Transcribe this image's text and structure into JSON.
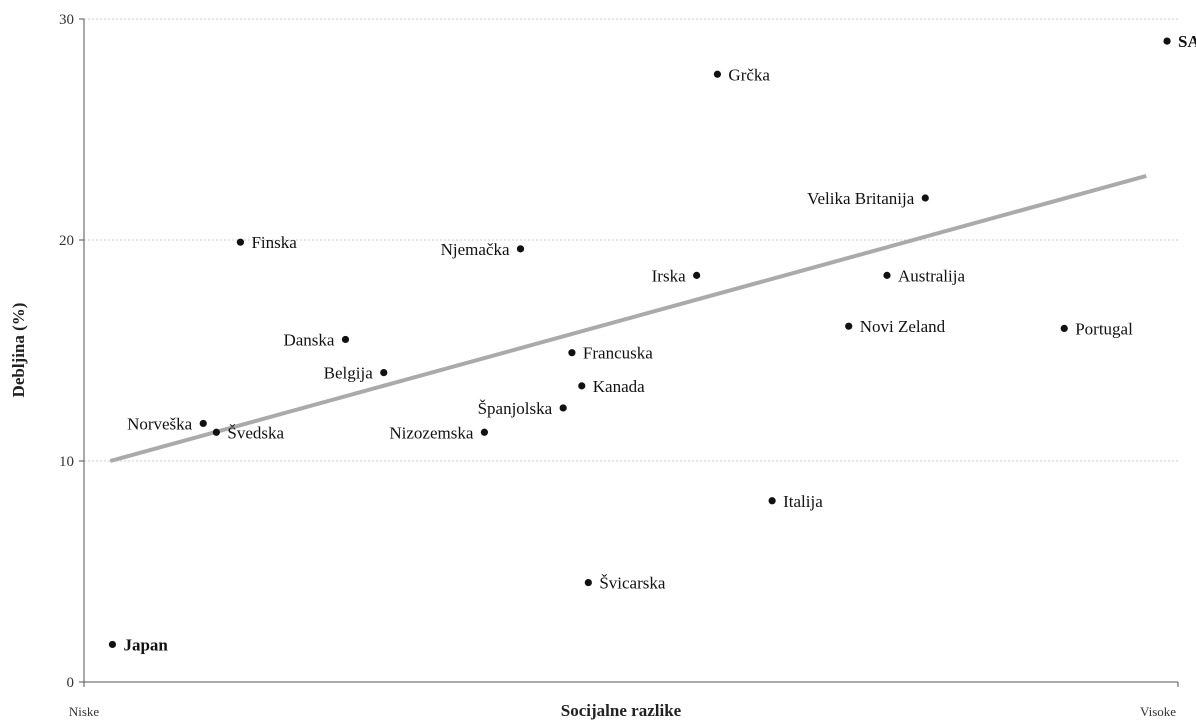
{
  "chart_data": {
    "type": "scatter",
    "xlabel": "Socijalne razlike",
    "ylabel": "Debljina (%)",
    "x_axis_end_labels": {
      "low": "Niske",
      "high": "Visoke"
    },
    "ylim": [
      0,
      30
    ],
    "yticks": [
      0,
      10,
      20,
      30
    ],
    "xlim": [
      0,
      100
    ],
    "grid": {
      "horizontal": true,
      "vertical": false
    },
    "legend": "none",
    "colors": {
      "points": "#111111",
      "trend_line": "#aaaaaa",
      "grid": "#cccccc"
    },
    "points": [
      {
        "label": "SAD",
        "x": 99.0,
        "y": 29.0,
        "bold": true
      },
      {
        "label": "Grčka",
        "x": 57.9,
        "y": 27.5,
        "bold": false
      },
      {
        "label": "Velika Britanija",
        "x": 76.9,
        "y": 21.9,
        "bold": false
      },
      {
        "label": "Finska",
        "x": 14.3,
        "y": 19.9,
        "bold": false
      },
      {
        "label": "Njemačka",
        "x": 39.9,
        "y": 19.6,
        "bold": false
      },
      {
        "label": "Irska",
        "x": 56.0,
        "y": 18.4,
        "bold": false
      },
      {
        "label": "Australija",
        "x": 73.4,
        "y": 18.4,
        "bold": false
      },
      {
        "label": "Novi Zeland",
        "x": 69.9,
        "y": 16.1,
        "bold": false
      },
      {
        "label": "Portugal",
        "x": 89.6,
        "y": 16.0,
        "bold": false
      },
      {
        "label": "Danska",
        "x": 23.9,
        "y": 15.5,
        "bold": false
      },
      {
        "label": "Francuska",
        "x": 44.6,
        "y": 14.9,
        "bold": false
      },
      {
        "label": "Belgija",
        "x": 27.4,
        "y": 14.0,
        "bold": false
      },
      {
        "label": "Kanada",
        "x": 45.5,
        "y": 13.4,
        "bold": false
      },
      {
        "label": "Španjolska",
        "x": 43.8,
        "y": 12.4,
        "bold": false
      },
      {
        "label": "Norveška",
        "x": 10.9,
        "y": 11.7,
        "bold": false
      },
      {
        "label": "Švedska",
        "x": 12.1,
        "y": 11.3,
        "bold": false
      },
      {
        "label": "Nizozemska",
        "x": 36.6,
        "y": 11.3,
        "bold": false
      },
      {
        "label": "Italija",
        "x": 62.9,
        "y": 8.2,
        "bold": false
      },
      {
        "label": "Švicarska",
        "x": 46.1,
        "y": 4.5,
        "bold": false
      },
      {
        "label": "Japan",
        "x": 2.6,
        "y": 1.7,
        "bold": true
      }
    ],
    "trend_line": {
      "x": [
        2.4,
        97.1
      ],
      "y": [
        10.0,
        22.9
      ]
    }
  }
}
